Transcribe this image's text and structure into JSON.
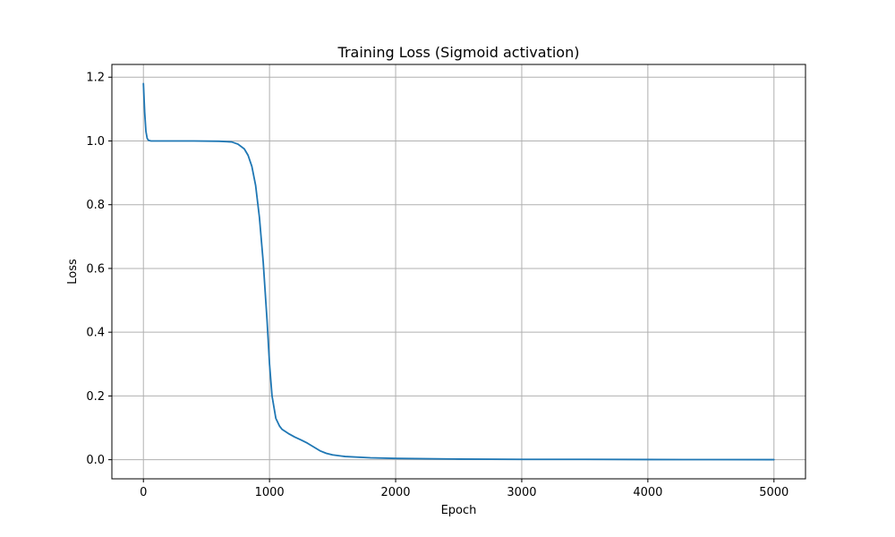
{
  "chart_data": {
    "type": "line",
    "title": "Training Loss (Sigmoid activation)",
    "xlabel": "Epoch",
    "ylabel": "Loss",
    "xlim": [
      -250,
      5250
    ],
    "ylim": [
      -0.06,
      1.24
    ],
    "grid": true,
    "xticks": [
      0,
      1000,
      2000,
      3000,
      4000,
      5000
    ],
    "xtick_labels": [
      "0",
      "1000",
      "2000",
      "3000",
      "4000",
      "5000"
    ],
    "yticks": [
      0.0,
      0.2,
      0.4,
      0.6,
      0.8,
      1.0,
      1.2
    ],
    "ytick_labels": [
      "0.0",
      "0.2",
      "0.4",
      "0.6",
      "0.8",
      "1.0",
      "1.2"
    ],
    "series": [
      {
        "color": "#1f77b4",
        "x": [
          0,
          10,
          20,
          30,
          40,
          60,
          100,
          200,
          400,
          600,
          700,
          750,
          800,
          830,
          860,
          890,
          920,
          950,
          980,
          1000,
          1020,
          1050,
          1080,
          1100,
          1150,
          1200,
          1250,
          1300,
          1350,
          1400,
          1450,
          1500,
          1600,
          1800,
          2000,
          2500,
          3000,
          3500,
          4000,
          4500,
          5000
        ],
        "y": [
          1.18,
          1.09,
          1.03,
          1.008,
          1.002,
          1.0,
          1.0,
          1.0,
          1.0,
          0.999,
          0.997,
          0.99,
          0.975,
          0.955,
          0.92,
          0.86,
          0.76,
          0.62,
          0.44,
          0.3,
          0.2,
          0.13,
          0.105,
          0.095,
          0.082,
          0.071,
          0.062,
          0.052,
          0.04,
          0.028,
          0.02,
          0.015,
          0.01,
          0.006,
          0.004,
          0.002,
          0.001,
          0.001,
          0.0005,
          0.0003,
          0.0002
        ]
      }
    ]
  }
}
